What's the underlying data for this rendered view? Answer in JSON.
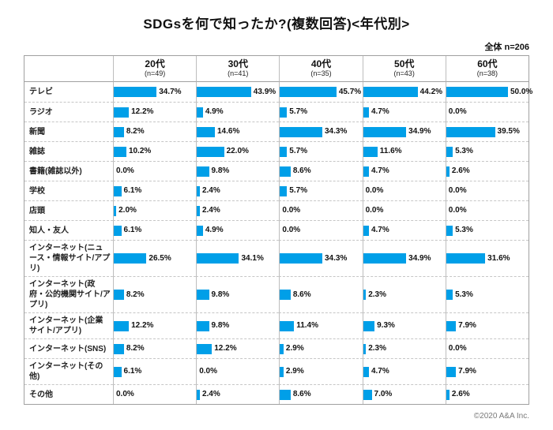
{
  "title": "SDGsを何で知ったか?(複数回答)<年代別>",
  "total_label": "全体 n=206",
  "footer": "©2020 A&A Inc.",
  "colors": {
    "bar": "#009FE8",
    "border_solid": "#a0a0a0",
    "border_dashed": "#c6c6c6"
  },
  "chart_data": {
    "type": "bar",
    "orientation": "horizontal",
    "value_unit": "%",
    "xlim": [
      0,
      66
    ],
    "grid": false,
    "legend": "none",
    "title": "SDGsを何で知ったか?(複数回答)<年代別>",
    "overall_n": 206,
    "categories": [
      "テレビ",
      "ラジオ",
      "新聞",
      "雑誌",
      "書籍(雑誌以外)",
      "学校",
      "店頭",
      "知人・友人",
      "インターネット(ニュース・情報サイト/アプリ)",
      "インターネット(政府・公的機関サイト/アプリ)",
      "インターネット(企業サイト/アプリ)",
      "インターネット(SNS)",
      "インターネット(その他)",
      "その他"
    ],
    "groups": [
      {
        "label": "20代",
        "n_label": "(n=49)",
        "values": [
          34.7,
          12.2,
          8.2,
          10.2,
          0.0,
          6.1,
          2.0,
          6.1,
          26.5,
          8.2,
          12.2,
          8.2,
          6.1,
          0.0
        ]
      },
      {
        "label": "30代",
        "n_label": "(n=41)",
        "values": [
          43.9,
          4.9,
          14.6,
          22.0,
          9.8,
          2.4,
          2.4,
          4.9,
          34.1,
          9.8,
          9.8,
          12.2,
          0.0,
          2.4
        ]
      },
      {
        "label": "40代",
        "n_label": "(n=35)",
        "values": [
          45.7,
          5.7,
          34.3,
          5.7,
          8.6,
          5.7,
          0.0,
          0.0,
          34.3,
          8.6,
          11.4,
          2.9,
          2.9,
          8.6
        ]
      },
      {
        "label": "50代",
        "n_label": "(n=43)",
        "values": [
          44.2,
          4.7,
          34.9,
          11.6,
          4.7,
          0.0,
          0.0,
          4.7,
          34.9,
          2.3,
          9.3,
          2.3,
          4.7,
          7.0
        ]
      },
      {
        "label": "60代",
        "n_label": "(n=38)",
        "values": [
          50.0,
          0.0,
          39.5,
          5.3,
          2.6,
          0.0,
          0.0,
          5.3,
          31.6,
          5.3,
          7.9,
          0.0,
          7.9,
          2.6
        ]
      }
    ]
  }
}
